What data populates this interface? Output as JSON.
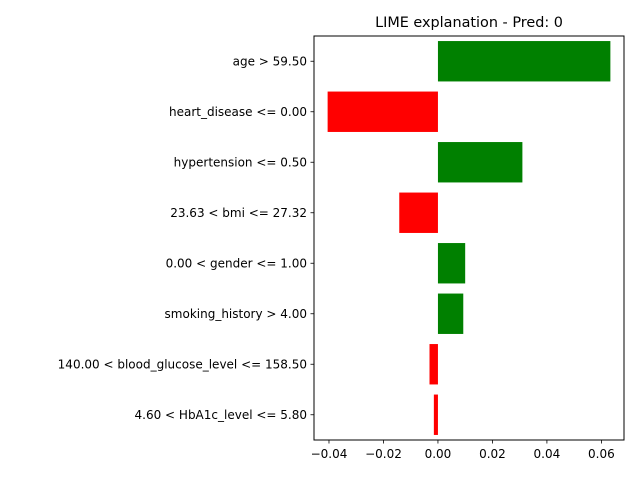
{
  "chart_data": {
    "type": "bar",
    "orientation": "horizontal",
    "title": "LIME explanation - Pred: 0",
    "xlabel": "",
    "ylabel": "",
    "categories": [
      "age > 59.50",
      "heart_disease <= 0.00",
      "hypertension <= 0.50",
      "23.63 < bmi <= 27.32",
      "0.00 < gender <= 1.00",
      "smoking_history > 4.00",
      "140.00 < blood_glucose_level <= 158.50",
      "4.60 < HbA1c_level <= 5.80"
    ],
    "values": [
      0.0633,
      -0.0405,
      0.031,
      -0.0142,
      0.01,
      0.0093,
      -0.0031,
      -0.0015
    ],
    "xlim": [
      -0.0455,
      0.0683
    ],
    "xticks": [
      -0.04,
      -0.02,
      0.0,
      0.02,
      0.04,
      0.06
    ],
    "xtick_labels": [
      "−0.04",
      "−0.02",
      "0.00",
      "0.02",
      "0.04",
      "0.06"
    ],
    "grid": false,
    "legend": "none",
    "colors": {
      "positive": "#008000",
      "negative": "#ff0000"
    }
  }
}
